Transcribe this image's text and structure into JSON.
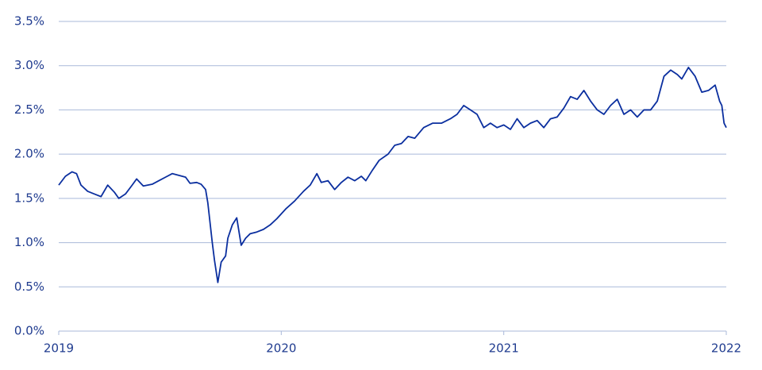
{
  "chart_data": {
    "type": "line",
    "x": [
      2019.0,
      2019.03,
      2019.06,
      2019.08,
      2019.1,
      2019.13,
      2019.16,
      2019.19,
      2019.22,
      2019.25,
      2019.27,
      2019.3,
      2019.33,
      2019.35,
      2019.38,
      2019.42,
      2019.45,
      2019.48,
      2019.51,
      2019.54,
      2019.57,
      2019.59,
      2019.62,
      2019.64,
      2019.66,
      2019.67,
      2019.69,
      2019.7,
      2019.715,
      2019.73,
      2019.75,
      2019.76,
      2019.78,
      2019.8,
      2019.82,
      2019.84,
      2019.86,
      2019.89,
      2019.92,
      2019.95,
      2019.98,
      2020.02,
      2020.06,
      2020.1,
      2020.13,
      2020.16,
      2020.18,
      2020.21,
      2020.24,
      2020.27,
      2020.3,
      2020.33,
      2020.36,
      2020.38,
      2020.41,
      2020.44,
      2020.48,
      2020.51,
      2020.54,
      2020.57,
      2020.6,
      2020.64,
      2020.68,
      2020.72,
      2020.76,
      2020.79,
      2020.82,
      2020.85,
      2020.88,
      2020.91,
      2020.94,
      2020.97,
      2021.0,
      2021.03,
      2021.06,
      2021.09,
      2021.12,
      2021.15,
      2021.18,
      2021.21,
      2021.24,
      2021.27,
      2021.3,
      2021.33,
      2021.36,
      2021.39,
      2021.42,
      2021.45,
      2021.48,
      2021.51,
      2021.54,
      2021.57,
      2021.6,
      2021.63,
      2021.66,
      2021.69,
      2021.72,
      2021.75,
      2021.78,
      2021.8,
      2021.83,
      2021.86,
      2021.89,
      2021.92,
      2021.95,
      2021.97,
      2021.98,
      2021.99,
      2022.0
    ],
    "series": [
      {
        "color": "#0b2f9f",
        "values": [
          1.65,
          1.75,
          1.8,
          1.78,
          1.65,
          1.58,
          1.55,
          1.52,
          1.65,
          1.57,
          1.5,
          1.55,
          1.65,
          1.72,
          1.64,
          1.66,
          1.7,
          1.74,
          1.78,
          1.76,
          1.74,
          1.67,
          1.68,
          1.66,
          1.6,
          1.45,
          1.0,
          0.8,
          0.55,
          0.78,
          0.85,
          1.05,
          1.2,
          1.28,
          0.97,
          1.05,
          1.1,
          1.12,
          1.15,
          1.2,
          1.27,
          1.38,
          1.47,
          1.58,
          1.65,
          1.78,
          1.68,
          1.7,
          1.6,
          1.68,
          1.74,
          1.7,
          1.75,
          1.7,
          1.82,
          1.93,
          2.0,
          2.1,
          2.12,
          2.2,
          2.18,
          2.3,
          2.35,
          2.35,
          2.4,
          2.45,
          2.55,
          2.5,
          2.45,
          2.3,
          2.35,
          2.3,
          2.33,
          2.28,
          2.4,
          2.3,
          2.35,
          2.38,
          2.3,
          2.4,
          2.42,
          2.52,
          2.65,
          2.62,
          2.72,
          2.6,
          2.5,
          2.45,
          2.55,
          2.62,
          2.45,
          2.5,
          2.42,
          2.5,
          2.5,
          2.6,
          2.88,
          2.95,
          2.9,
          2.85,
          2.98,
          2.88,
          2.7,
          2.72,
          2.78,
          2.6,
          2.55,
          2.35,
          2.3
        ]
      }
    ],
    "xlim": [
      2019,
      2022
    ],
    "xticks": [
      2019,
      2020,
      2021,
      2022
    ],
    "ylim": [
      0,
      3.5
    ],
    "yticks": [
      {
        "value": 0,
        "label": "0.0%"
      },
      {
        "value": 0.5,
        "label": "0.5%"
      },
      {
        "value": 1,
        "label": "1.0%"
      },
      {
        "value": 1.5,
        "label": "1.5%"
      },
      {
        "value": 2,
        "label": "2.0%"
      },
      {
        "value": 2.5,
        "label": "2.5%"
      },
      {
        "value": 3,
        "label": "3.0%"
      },
      {
        "value": 3.5,
        "label": "3.5%"
      }
    ],
    "grid": true
  }
}
